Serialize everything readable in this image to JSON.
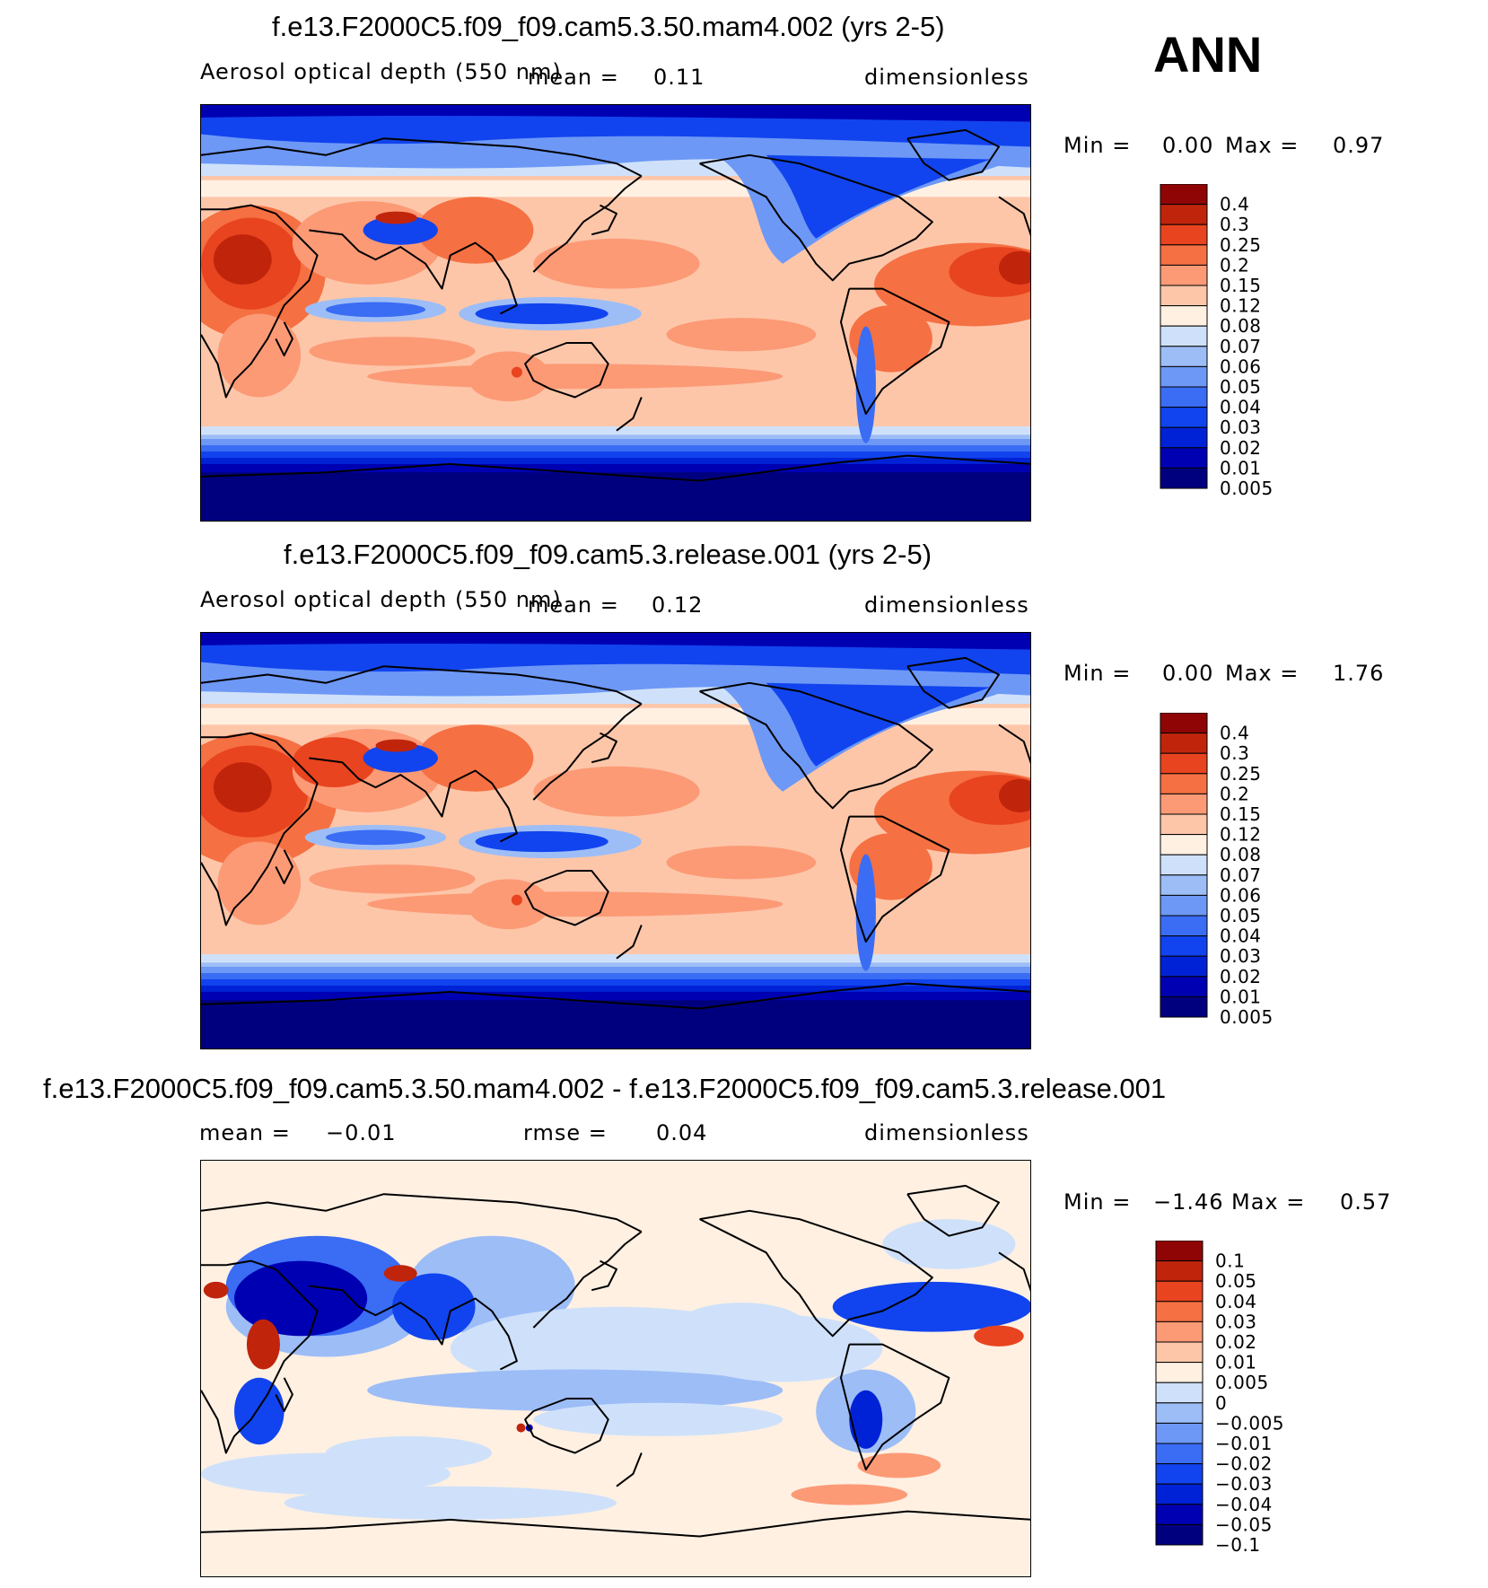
{
  "season": "ANN",
  "colors": {
    "seq": [
      "#00007f",
      "#0000b3",
      "#0022d6",
      "#1144ee",
      "#3a6cf4",
      "#6d98f6",
      "#9dbdf7",
      "#cfe1fa",
      "#fff0e2",
      "#fdc6a9",
      "#fc9a76",
      "#f57043",
      "#e8441f",
      "#c0250c",
      "#8f0505"
    ],
    "diff": [
      "#00007f",
      "#0000b3",
      "#0022d6",
      "#1144ee",
      "#3a6cf4",
      "#6d98f6",
      "#9dbdf7",
      "#cfe1fa",
      "#fff0e2",
      "#fdc6a9",
      "#fc9a76",
      "#f57043",
      "#e8441f",
      "#c0250c",
      "#8f0505"
    ]
  },
  "panels": [
    {
      "title": "f.e13.F2000C5.f09_f09.cam5.3.50.mam4.002 (yrs 2-5)",
      "subtitle": "Aerosol optical depth (550 nm)",
      "mean_label": "mean =",
      "mean": "0.11",
      "units": "dimensionless",
      "min_label": "Min =",
      "min": "0.00",
      "max_label": "Max =",
      "max": "0.97"
    },
    {
      "title": "f.e13.F2000C5.f09_f09.cam5.3.release.001 (yrs 2-5)",
      "subtitle": "Aerosol optical depth (550 nm)",
      "mean_label": "mean =",
      "mean": "0.12",
      "units": "dimensionless",
      "min_label": "Min =",
      "min": "0.00",
      "max_label": "Max =",
      "max": "1.76"
    },
    {
      "title": "f.e13.F2000C5.f09_f09.cam5.3.50.mam4.002 - f.e13.F2000C5.f09_f09.cam5.3.release.001",
      "mean_label": "mean =",
      "mean": "−0.01",
      "rmse_label": "rmse =",
      "rmse": "0.04",
      "units": "dimensionless",
      "min_label": "Min =",
      "min": "−1.46",
      "max_label": "Max =",
      "max": "0.57"
    }
  ],
  "chart_data": [
    {
      "type": "heatmap",
      "title": "f.e13.F2000C5.f09_f09.cam5.3.50.mam4.002 (yrs 2-5)",
      "variable": "Aerosol optical depth (550 nm)",
      "units": "dimensionless",
      "mean": 0.11,
      "min": 0.0,
      "max": 0.97,
      "colorbar_levels": [
        "0.4",
        "0.3",
        "0.25",
        "0.2",
        "0.15",
        "0.12",
        "0.08",
        "0.07",
        "0.06",
        "0.05",
        "0.04",
        "0.03",
        "0.02",
        "0.01",
        "0.005"
      ]
    },
    {
      "type": "heatmap",
      "title": "f.e13.F2000C5.f09_f09.cam5.3.release.001 (yrs 2-5)",
      "variable": "Aerosol optical depth (550 nm)",
      "units": "dimensionless",
      "mean": 0.12,
      "min": 0.0,
      "max": 1.76,
      "colorbar_levels": [
        "0.4",
        "0.3",
        "0.25",
        "0.2",
        "0.15",
        "0.12",
        "0.08",
        "0.07",
        "0.06",
        "0.05",
        "0.04",
        "0.03",
        "0.02",
        "0.01",
        "0.005"
      ]
    },
    {
      "type": "heatmap",
      "title": "f.e13.F2000C5.f09_f09.cam5.3.50.mam4.002 - f.e13.F2000C5.f09_f09.cam5.3.release.001",
      "units": "dimensionless",
      "mean": -0.01,
      "rmse": 0.04,
      "min": -1.46,
      "max": 0.57,
      "colorbar_levels": [
        "0.1",
        "0.05",
        "0.04",
        "0.03",
        "0.02",
        "0.01",
        "0.005",
        "0",
        "−0.005",
        "−0.01",
        "−0.02",
        "−0.03",
        "−0.04",
        "−0.05",
        "−0.1"
      ]
    }
  ]
}
